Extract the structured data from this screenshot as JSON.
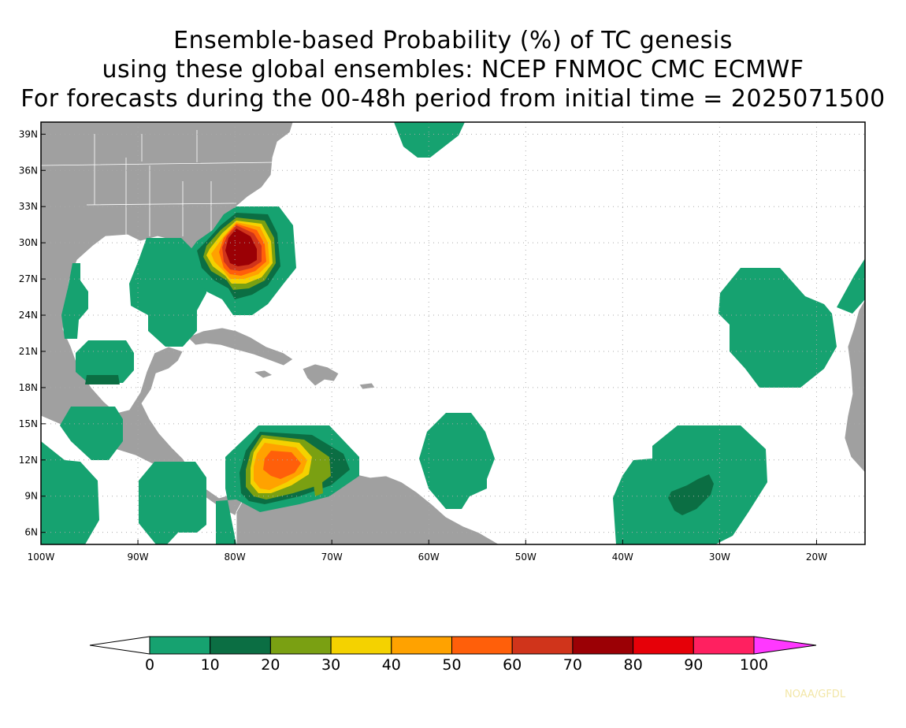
{
  "title": {
    "line1": "Ensemble-based Probability (%) of TC genesis",
    "line2": "using these global ensembles:   NCEP FNMOC CMC ECMWF",
    "line3": "For forecasts during the 00-48h period from initial time = 2025071500"
  },
  "axes": {
    "lat_labels": [
      "39N",
      "36N",
      "33N",
      "30N",
      "27N",
      "24N",
      "21N",
      "18N",
      "15N",
      "12N",
      "9N",
      "6N"
    ],
    "lon_labels": [
      "100W",
      "90W",
      "80W",
      "70W",
      "60W",
      "50W",
      "40W",
      "30W",
      "20W"
    ]
  },
  "colorbar": {
    "labels": [
      "0",
      "10",
      "20",
      "30",
      "40",
      "50",
      "60",
      "70",
      "80",
      "90",
      "100"
    ],
    "colors": [
      "#ffffff",
      "#16a270",
      "#0b6e43",
      "#7aa012",
      "#f4d200",
      "#ffa200",
      "#ff5f0a",
      "#d0341b",
      "#9b0005",
      "#e60008",
      "#ff2060",
      "#ff38ff"
    ]
  },
  "colors": {
    "land": "#a0a0a0",
    "p0_10": "#16a270",
    "p10_20": "#0b6e43",
    "p20_30": "#7aa012",
    "p30_40": "#f4d200",
    "p40_50": "#ffa200",
    "p50_60": "#ff5f0a",
    "p60_70": "#d0341b",
    "p70_80": "#9b0005"
  },
  "credit": "NOAA/GFDL"
}
